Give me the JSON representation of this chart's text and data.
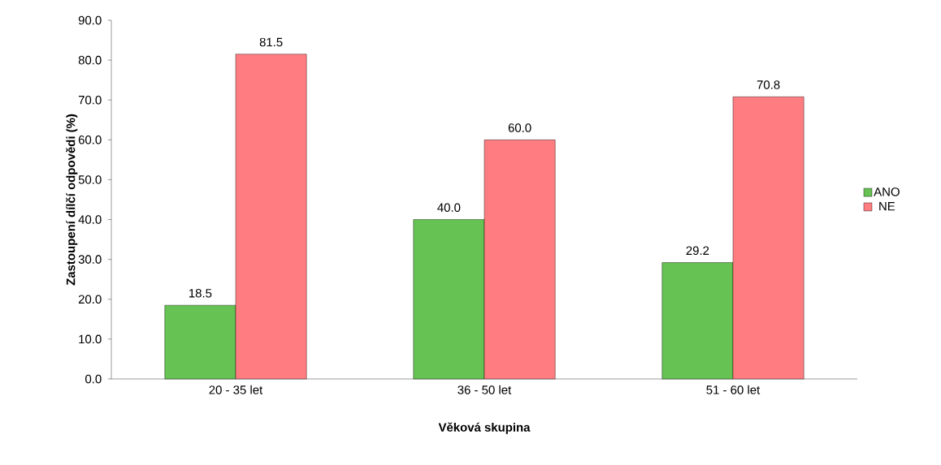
{
  "chart_data": {
    "type": "bar",
    "xlabel": "Věková skupina",
    "ylabel": "Zastoupení dílčí odpovědi (%)",
    "categories": [
      "20 - 35 let",
      "36 - 50 let",
      "51 - 60 let"
    ],
    "series": [
      {
        "name": "ANO",
        "color": "#66c253",
        "values": [
          18.5,
          40.0,
          29.2
        ],
        "value_labels": [
          "18.5",
          "40.0",
          "29.2"
        ]
      },
      {
        "name": "NE",
        "color": "#ff7c80",
        "values": [
          81.5,
          60.0,
          70.8
        ],
        "value_labels": [
          "81.5",
          "60.0",
          "70.8"
        ]
      }
    ],
    "ylim": [
      0,
      90
    ],
    "yticks": [
      {
        "value": 0,
        "label": "0.0"
      },
      {
        "value": 10,
        "label": "10.0"
      },
      {
        "value": 20,
        "label": "20.0"
      },
      {
        "value": 30,
        "label": "30.0"
      },
      {
        "value": 40,
        "label": "40.0"
      },
      {
        "value": 50,
        "label": "50.0"
      },
      {
        "value": 60,
        "label": "60.0"
      },
      {
        "value": 70,
        "label": "70.0"
      },
      {
        "value": 80,
        "label": "80.0"
      },
      {
        "value": 90,
        "label": "90.0"
      }
    ],
    "grid": false,
    "legend": "right"
  }
}
